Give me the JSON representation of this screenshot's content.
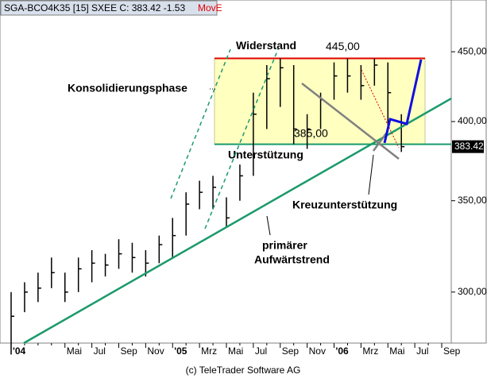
{
  "chart_data": {
    "type": "ohlc",
    "title": "SGA-BCO4K35 [15] SXEE C: 383.42 -1.53",
    "indicator": "MovE",
    "footer": "(c) TeleTrader Software AG",
    "categories": [
      "'04",
      null,
      null,
      null,
      "Mai",
      null,
      "Jul",
      null,
      "Sep",
      null,
      "Nov",
      null,
      "'05",
      null,
      "Mrz",
      null,
      "Mai",
      null,
      "Jul",
      null,
      "Sep",
      null,
      "Nov",
      null,
      "'06",
      null,
      "Mrz",
      null,
      "Mai",
      null,
      "Jul",
      null,
      "Sep"
    ],
    "series": [
      {
        "name": "High",
        "values": [
          300,
          305,
          310,
          318,
          310,
          318,
          322,
          320,
          328,
          326,
          322,
          330,
          340,
          355,
          362,
          365,
          352,
          372,
          420,
          440,
          445,
          440,
          405,
          420,
          442,
          445,
          440,
          445,
          442,
          405,
          null,
          null,
          null
        ]
      },
      {
        "name": "Low",
        "values": [
          270,
          290,
          295,
          302,
          295,
          300,
          305,
          308,
          312,
          310,
          308,
          315,
          318,
          330,
          345,
          345,
          335,
          350,
          365,
          395,
          410,
          385,
          382,
          395,
          415,
          420,
          415,
          425,
          395,
          380,
          null,
          null,
          null
        ]
      },
      {
        "name": "Close",
        "values": [
          288,
          300,
          302,
          310,
          300,
          312,
          315,
          314,
          320,
          318,
          315,
          325,
          330,
          348,
          355,
          358,
          340,
          365,
          405,
          430,
          438,
          395,
          395,
          415,
          432,
          432,
          425,
          440,
          420,
          383.42,
          null,
          null,
          null
        ]
      }
    ],
    "color": "#000000",
    "ylim": [
      276,
      480
    ],
    "log_scale": true,
    "yticks": [
      {
        "value": 300,
        "label": "300,00"
      },
      {
        "value": 350,
        "label": "350,00"
      },
      {
        "value": 400,
        "label": "400,00"
      },
      {
        "value": 450,
        "label": "450,00"
      }
    ],
    "last_price": 383.42,
    "resistance": {
      "name": "Widerstand",
      "value": 445,
      "label": "445,00",
      "color": "#e00000"
    },
    "support": {
      "name": "Unterstützung",
      "value": 385,
      "label": "385,00",
      "color": "#1a9a6a"
    },
    "annotations": [
      "Konsolidierungsphase",
      "Kreuzunterstützung",
      "primärer",
      "Aufwärtstrend"
    ]
  }
}
